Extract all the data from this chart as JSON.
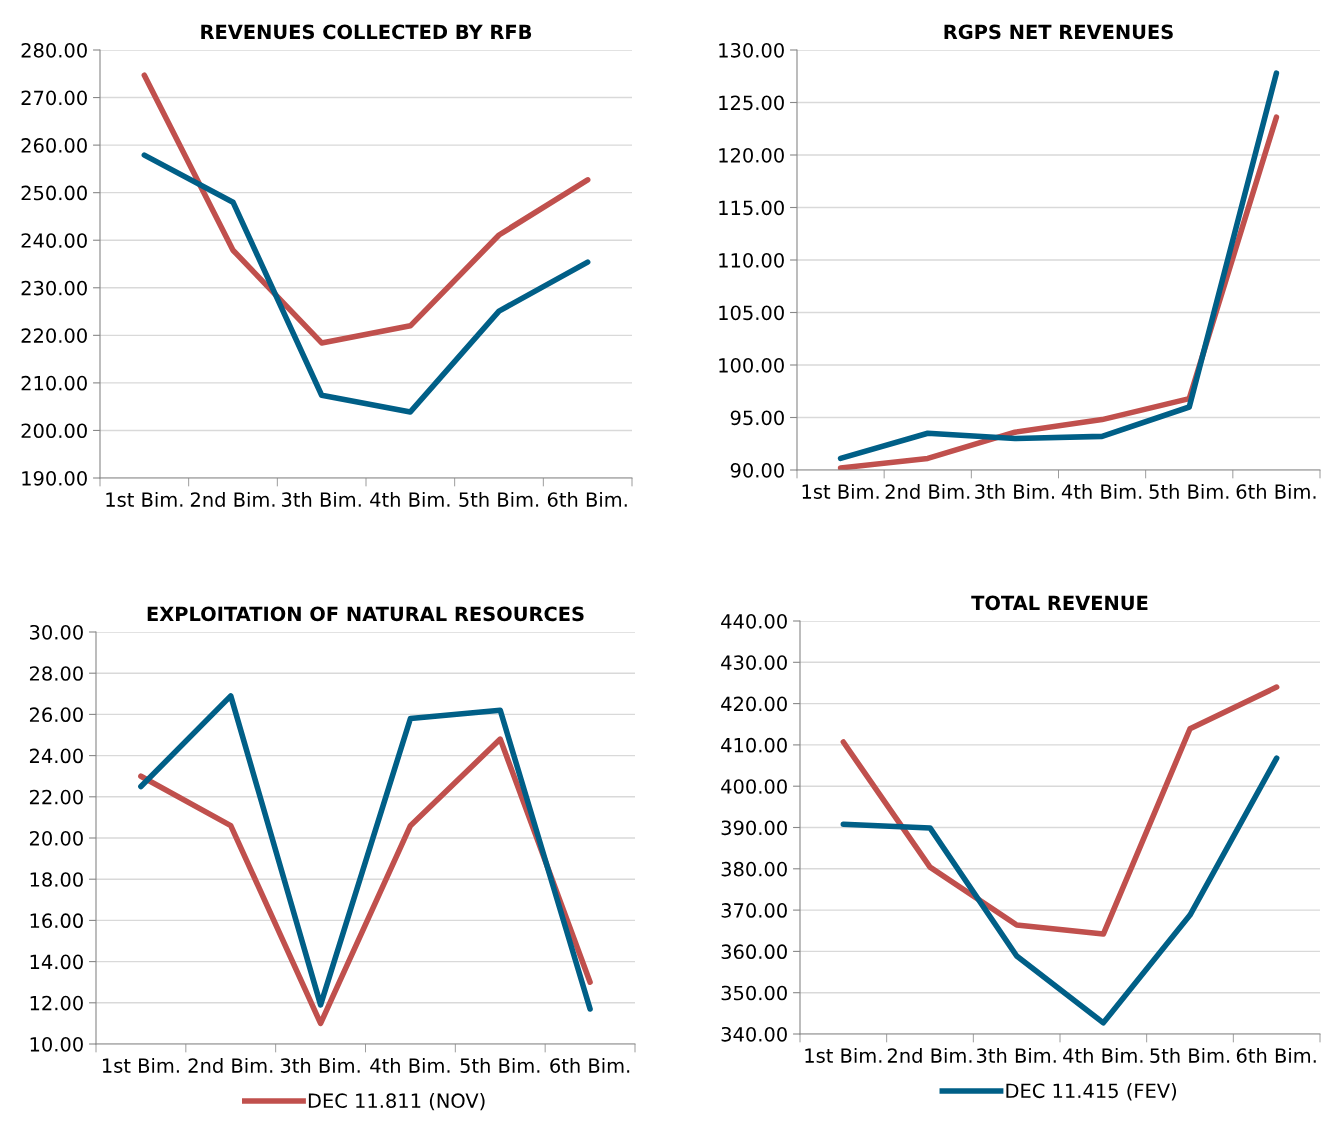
{
  "chart_data": [
    {
      "type": "line",
      "title": "REVENUES COLLECTED BY RFB",
      "categories": [
        "1st Bim.",
        "2nd Bim.",
        "3th Bim.",
        "4th Bim.",
        "5th Bim.",
        "6th Bim."
      ],
      "series": [
        {
          "color": "#c0504d",
          "values": [
            274.7,
            237.9,
            218.4,
            222.0,
            241.1,
            252.7
          ]
        },
        {
          "color": "#005f87",
          "values": [
            257.9,
            248.0,
            207.4,
            203.9,
            225.1,
            235.4
          ]
        }
      ],
      "ylim": [
        190,
        280
      ],
      "yticks": [
        {
          "value": 190,
          "label": "190.00"
        },
        {
          "value": 200,
          "label": "200.00"
        },
        {
          "value": 210,
          "label": "210.00"
        },
        {
          "value": 220,
          "label": "220.00"
        },
        {
          "value": 230,
          "label": "230.00"
        },
        {
          "value": 240,
          "label": "240.00"
        },
        {
          "value": 250,
          "label": "250.00"
        },
        {
          "value": 260,
          "label": "260.00"
        },
        {
          "value": 270,
          "label": "270.00"
        },
        {
          "value": 280,
          "label": "280.00"
        }
      ],
      "grid": "y"
    },
    {
      "type": "line",
      "title": "RGPS NET REVENUES",
      "categories": [
        "1st Bim.",
        "2nd Bim.",
        "3th Bim.",
        "4th Bim.",
        "5th Bim.",
        "6th Bim."
      ],
      "series": [
        {
          "color": "#c0504d",
          "values": [
            90.2,
            91.1,
            93.6,
            94.8,
            96.8,
            123.6
          ]
        },
        {
          "color": "#005f87",
          "values": [
            91.1,
            93.5,
            93.0,
            93.2,
            96.0,
            127.8
          ]
        }
      ],
      "ylim": [
        90,
        130
      ],
      "yticks": [
        {
          "value": 90,
          "label": "90.00"
        },
        {
          "value": 95,
          "label": "95.00"
        },
        {
          "value": 100,
          "label": "100.00"
        },
        {
          "value": 105,
          "label": "105.00"
        },
        {
          "value": 110,
          "label": "110.00"
        },
        {
          "value": 115,
          "label": "115.00"
        },
        {
          "value": 120,
          "label": "120.00"
        },
        {
          "value": 125,
          "label": "125.00"
        },
        {
          "value": 130,
          "label": "130.00"
        }
      ],
      "grid": "y"
    },
    {
      "type": "line",
      "title": "EXPLOITATION OF NATURAL RESOURCES",
      "categories": [
        "1st Bim.",
        "2nd Bim.",
        "3th Bim.",
        "4th Bim.",
        "5th Bim.",
        "6th Bim."
      ],
      "series": [
        {
          "name": "DEC 11.811 (NOV)",
          "color": "#c0504d",
          "values": [
            23.0,
            20.6,
            11.0,
            20.6,
            24.8,
            13.0
          ]
        },
        {
          "color": "#005f87",
          "values": [
            22.5,
            26.9,
            11.9,
            25.8,
            26.2,
            11.7
          ]
        }
      ],
      "ylim": [
        10,
        30
      ],
      "yticks": [
        {
          "value": 10,
          "label": "10.00"
        },
        {
          "value": 12,
          "label": "12.00"
        },
        {
          "value": 14,
          "label": "14.00"
        },
        {
          "value": 16,
          "label": "16.00"
        },
        {
          "value": 18,
          "label": "18.00"
        },
        {
          "value": 20,
          "label": "20.00"
        },
        {
          "value": 22,
          "label": "22.00"
        },
        {
          "value": 24,
          "label": "24.00"
        },
        {
          "value": 26,
          "label": "26.00"
        },
        {
          "value": 28,
          "label": "28.00"
        },
        {
          "value": 30,
          "label": "30.00"
        }
      ],
      "grid": "y",
      "legend": "bottom"
    },
    {
      "type": "line",
      "title": "TOTAL REVENUE",
      "categories": [
        "1st Bim.",
        "2nd Bim.",
        "3th Bim.",
        "4th Bim.",
        "5th Bim.",
        "6th Bim."
      ],
      "series": [
        {
          "color": "#c0504d",
          "values": [
            410.7,
            380.4,
            366.4,
            364.2,
            413.9,
            424.0
          ]
        },
        {
          "name": "DEC 11.415 (FEV)",
          "color": "#005f87",
          "values": [
            390.8,
            389.9,
            358.9,
            342.7,
            368.8,
            406.8
          ]
        }
      ],
      "ylim": [
        340,
        440
      ],
      "yticks": [
        {
          "value": 340,
          "label": "340.00"
        },
        {
          "value": 350,
          "label": "350.00"
        },
        {
          "value": 360,
          "label": "360.00"
        },
        {
          "value": 370,
          "label": "370.00"
        },
        {
          "value": 380,
          "label": "380.00"
        },
        {
          "value": 390,
          "label": "390.00"
        },
        {
          "value": 400,
          "label": "400.00"
        },
        {
          "value": 410,
          "label": "410.00"
        },
        {
          "value": 420,
          "label": "420.00"
        },
        {
          "value": 430,
          "label": "430.00"
        },
        {
          "value": 440,
          "label": "440.00"
        }
      ],
      "grid": "y",
      "legend": "bottom"
    }
  ]
}
